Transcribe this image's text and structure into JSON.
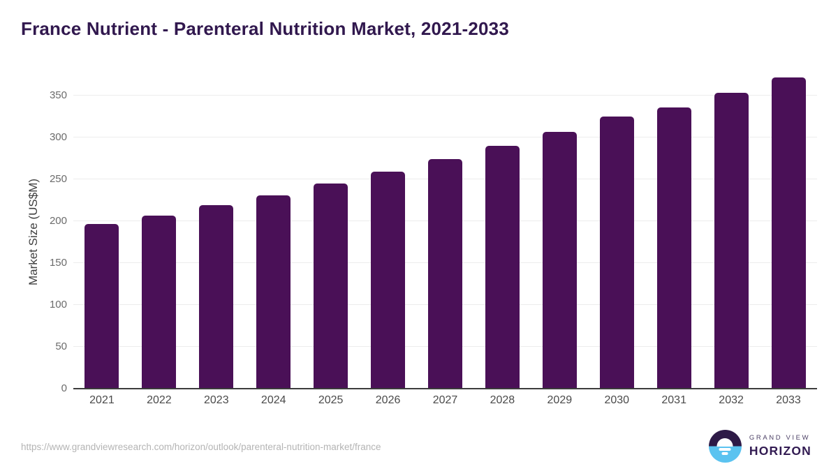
{
  "header": {
    "title": "France Nutrient - Parenteral Nutrition Market, 2021-2033"
  },
  "chart_data": {
    "type": "bar",
    "title": "France Nutrient - Parenteral Nutrition Market, 2021-2033",
    "categories": [
      "2021",
      "2022",
      "2023",
      "2024",
      "2025",
      "2026",
      "2027",
      "2028",
      "2029",
      "2030",
      "2031",
      "2032",
      "2033"
    ],
    "values": [
      197,
      207,
      219,
      231,
      245,
      259,
      274,
      290,
      307,
      325,
      336,
      353,
      372
    ],
    "xlabel": "",
    "ylabel": "Market Size (US$M)",
    "ylim": [
      0,
      375
    ],
    "yticks": [
      0,
      50,
      100,
      150,
      200,
      250,
      300,
      350
    ],
    "grid": true,
    "legend": false,
    "bar_color": "#4a1057"
  },
  "footer": {
    "source_url": "https://www.grandviewresearch.com/horizon/outlook/parenteral-nutrition-market/france",
    "logo": {
      "line1": "GRAND VIEW",
      "line2": "HORIZON"
    }
  },
  "colors": {
    "title_text": "#31184e",
    "bar": "#4a1057",
    "gridline": "#ececec",
    "axis_line": "#3c3c3c",
    "tick_text": "#6b6b6b",
    "url_text": "#b4b4b4",
    "logo_purple": "#2e1a47",
    "logo_blue": "#5bc3f0"
  }
}
